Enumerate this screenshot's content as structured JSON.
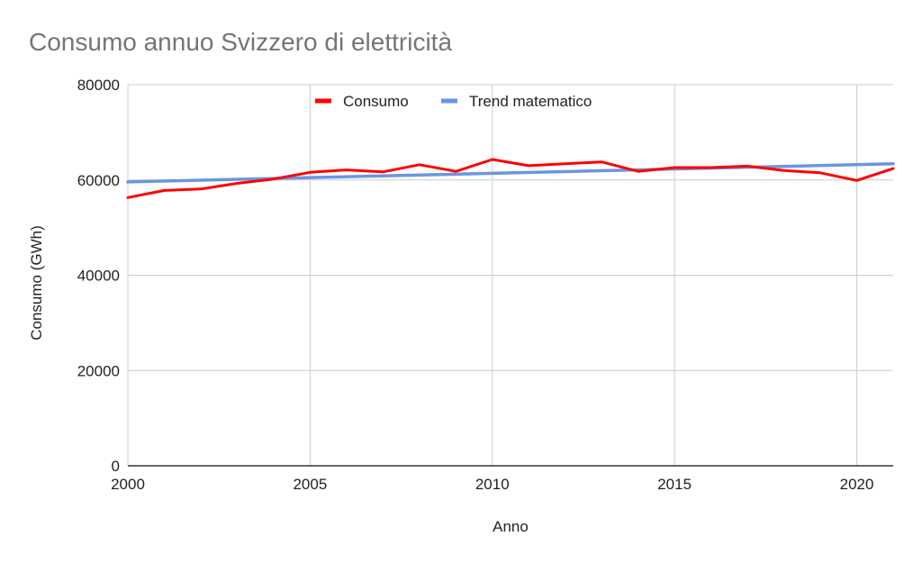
{
  "chart_data": {
    "type": "line",
    "title": "Consumo annuo Svizzero di elettricità",
    "xlabel": "Anno",
    "ylabel": "Consumo (GWh)",
    "xlim": [
      2000,
      2021
    ],
    "ylim": [
      0,
      80000
    ],
    "x_ticks": [
      "2000",
      "2005",
      "2010",
      "2015",
      "2020"
    ],
    "y_ticks": [
      "0",
      "20000",
      "40000",
      "60000",
      "80000"
    ],
    "grid": true,
    "legend_position": "top",
    "series": [
      {
        "name": "Consumo",
        "color": "#ff0000",
        "x": [
          2000,
          2001,
          2002,
          2003,
          2004,
          2005,
          2006,
          2007,
          2008,
          2009,
          2010,
          2011,
          2012,
          2013,
          2014,
          2015,
          2016,
          2017,
          2018,
          2019,
          2020,
          2021
        ],
        "values": [
          56300,
          57800,
          58100,
          59300,
          60200,
          61600,
          62100,
          61700,
          63200,
          61800,
          64300,
          63000,
          63400,
          63800,
          61800,
          62600,
          62600,
          62900,
          62000,
          61500,
          59900,
          62400
        ]
      },
      {
        "name": "Trend matematico",
        "color": "#6a96e0",
        "x": [
          2000,
          2021
        ],
        "values": [
          59600,
          63400
        ]
      }
    ]
  }
}
